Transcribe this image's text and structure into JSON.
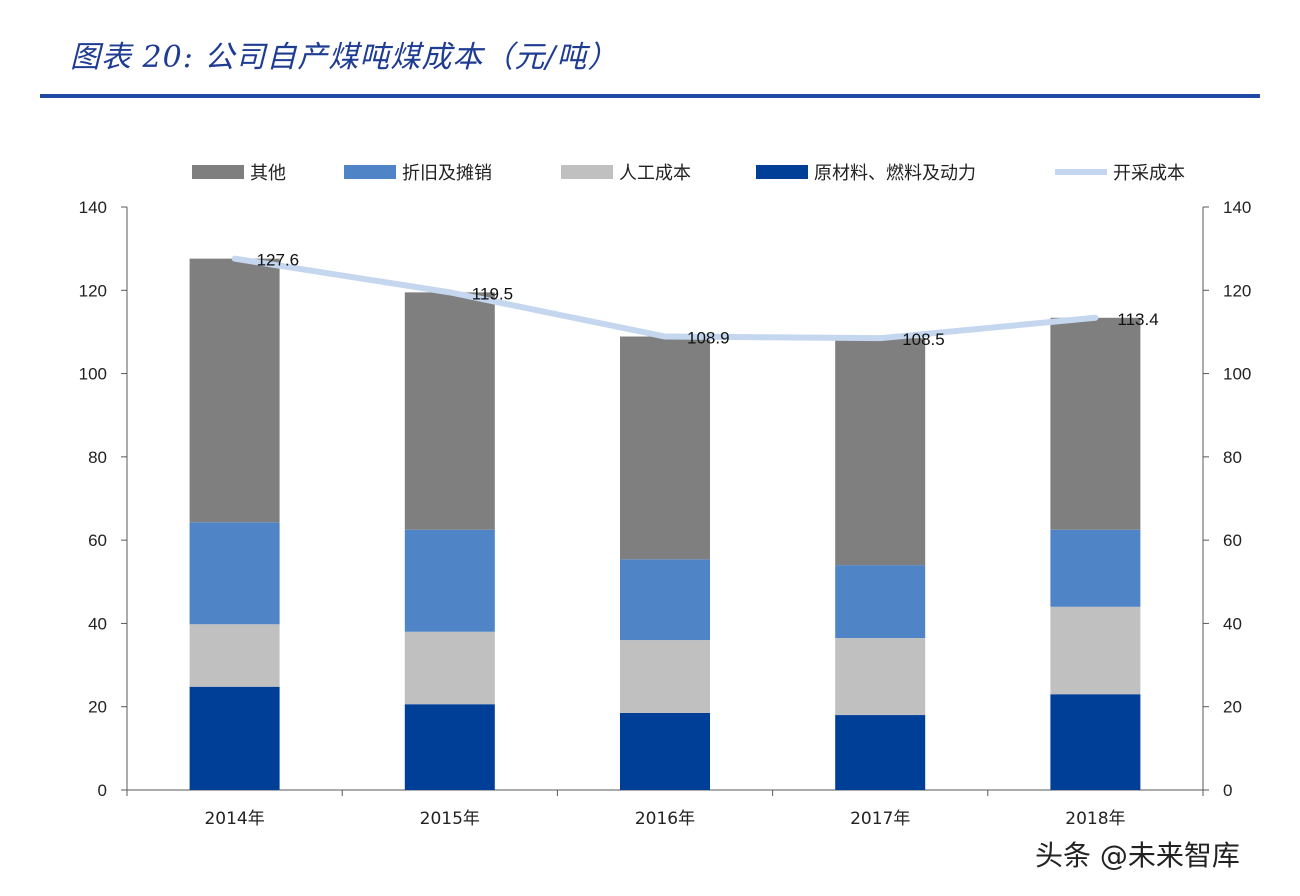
{
  "title": "图表 20: 公司自产煤吨煤成本（元/吨）",
  "watermark": "头条 @未来智库",
  "chart_data": {
    "type": "bar",
    "stacked": true,
    "categories": [
      "2014年",
      "2015年",
      "2016年",
      "2017年",
      "2018年"
    ],
    "series": [
      {
        "name": "原材料、燃料及动力",
        "type": "bar",
        "color": "#003f98",
        "values": [
          24.8,
          20.6,
          18.5,
          18.0,
          23.0
        ]
      },
      {
        "name": "人工成本",
        "type": "bar",
        "color": "#c0c0c0",
        "values": [
          15.0,
          17.4,
          17.5,
          18.5,
          21.0
        ]
      },
      {
        "name": "折旧及摊销",
        "type": "bar",
        "color": "#4f84c7",
        "values": [
          24.5,
          24.5,
          19.4,
          17.5,
          18.5
        ]
      },
      {
        "name": "其他",
        "type": "bar",
        "color": "#7f7f7f",
        "values": [
          63.3,
          57.0,
          53.5,
          54.5,
          50.9
        ]
      },
      {
        "name": "开采成本",
        "type": "line",
        "color": "#c5d7ef",
        "values": [
          127.6,
          119.5,
          108.9,
          108.5,
          113.4
        ]
      }
    ],
    "data_labels": [
      "127.6",
      "119.5",
      "108.9",
      "108.5",
      "113.4"
    ],
    "legend_order": [
      "其他",
      "折旧及摊销",
      "人工成本",
      "原材料、燃料及动力",
      "开采成本"
    ],
    "legend_position": "top",
    "ylim": [
      0,
      140
    ],
    "yticks": [
      "0",
      "20",
      "40",
      "60",
      "80",
      "100",
      "120",
      "140"
    ],
    "y2ticks": [
      "0",
      "20",
      "40",
      "60",
      "80",
      "100",
      "120",
      "140"
    ],
    "grid": false
  }
}
